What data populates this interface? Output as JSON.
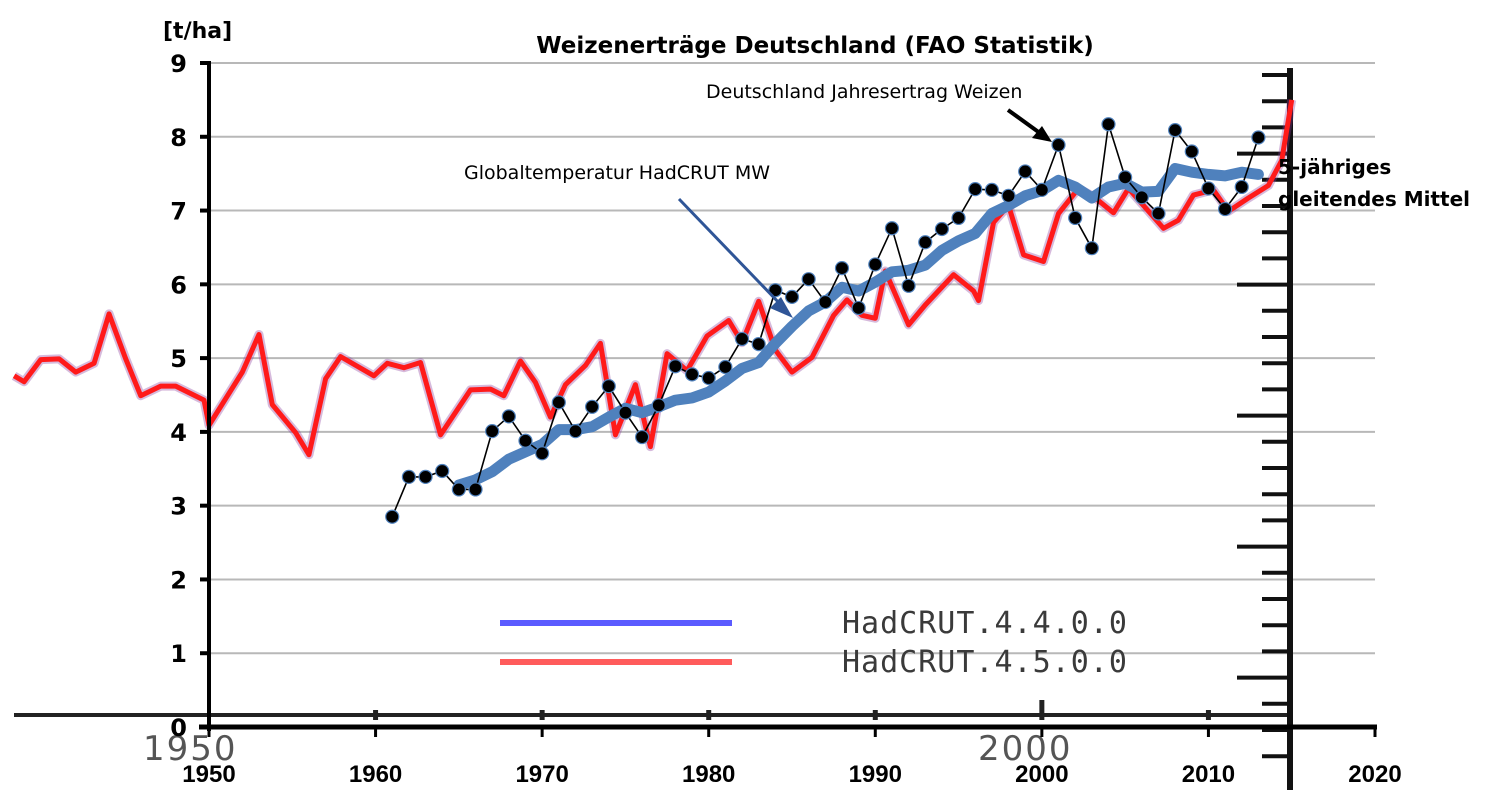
{
  "chart_data": {
    "type": "line",
    "title": "Weizenerträge Deutschland (FAO Statistik)",
    "ylabel": "[t/ha]",
    "xlabel": "",
    "xlim": [
      1950,
      2020
    ],
    "ylim": [
      0,
      9
    ],
    "x_ticks": [
      "1950",
      "1960",
      "1970",
      "1980",
      "1990",
      "2000",
      "2010",
      "2020"
    ],
    "y_ticks": [
      "0",
      "1",
      "2",
      "3",
      "4",
      "5",
      "6",
      "7",
      "8",
      "9"
    ],
    "grid": "horizontal",
    "annotations": [
      {
        "text": "Deutschland Jahresertrag Weizen",
        "points_to": "wheat_yield",
        "target_year": 2001
      },
      {
        "text": "Globaltemperatur HadCRUT MW",
        "points_to": "five_year_mean",
        "target_year": 1985
      },
      {
        "text_line1": "5-jähriges",
        "text_line2": "gleitendes Mittel",
        "points_to": "five_year_mean"
      }
    ],
    "legend": {
      "placement": "bottom-center",
      "entries": [
        {
          "label": "HadCRUT.4.4.0.0",
          "color": "#4a4aff"
        },
        {
          "label": "HadCRUT.4.5.0.0",
          "color": "#ff4a4a"
        }
      ]
    },
    "overlay_axis_labels": [
      "1950",
      "2000"
    ],
    "series": [
      {
        "name": "Deutschland Jahresertrag Weizen",
        "key": "wheat_yield",
        "color": "#000000",
        "marker": "circle",
        "x": [
          1961,
          1962,
          1963,
          1964,
          1965,
          1966,
          1967,
          1968,
          1969,
          1970,
          1971,
          1972,
          1973,
          1974,
          1975,
          1976,
          1977,
          1978,
          1979,
          1980,
          1981,
          1982,
          1983,
          1984,
          1985,
          1986,
          1987,
          1988,
          1989,
          1990,
          1991,
          1992,
          1993,
          1994,
          1995,
          1996,
          1997,
          1998,
          1999,
          2000,
          2001,
          2002,
          2003,
          2004,
          2005,
          2006,
          2007,
          2008,
          2009,
          2010,
          2011,
          2012,
          2013
        ],
        "values": [
          2.85,
          3.39,
          3.39,
          3.47,
          3.22,
          3.22,
          4.01,
          4.21,
          3.88,
          3.71,
          4.4,
          4.01,
          4.34,
          4.62,
          4.26,
          3.93,
          4.36,
          4.89,
          4.78,
          4.73,
          4.88,
          5.26,
          5.19,
          5.92,
          5.83,
          6.07,
          5.76,
          6.22,
          5.68,
          6.27,
          6.76,
          5.98,
          6.57,
          6.75,
          6.9,
          7.29,
          7.28,
          7.2,
          7.53,
          7.28,
          7.89,
          6.9,
          6.49,
          8.17,
          7.45,
          7.18,
          6.96,
          8.09,
          7.8,
          7.3,
          7.02,
          7.32,
          7.99
        ]
      },
      {
        "name": "5-jähriges gleitendes Mittel",
        "key": "five_year_mean",
        "color": "#4f81bd",
        "x": [
          1965,
          1966,
          1967,
          1968,
          1969,
          1970,
          1971,
          1972,
          1973,
          1974,
          1975,
          1976,
          1977,
          1978,
          1979,
          1980,
          1981,
          1982,
          1983,
          1984,
          1985,
          1986,
          1987,
          1988,
          1989,
          1990,
          1991,
          1992,
          1993,
          1994,
          1995,
          1996,
          1997,
          1998,
          1999,
          2000,
          2001,
          2002,
          2003,
          2004,
          2005,
          2006,
          2007,
          2008,
          2009,
          2010,
          2011,
          2012,
          2013
        ],
        "values": [
          3.28,
          3.35,
          3.46,
          3.63,
          3.73,
          3.83,
          4.03,
          4.03,
          4.07,
          4.2,
          4.32,
          4.26,
          4.34,
          4.43,
          4.46,
          4.54,
          4.69,
          4.86,
          4.94,
          5.2,
          5.43,
          5.64,
          5.76,
          5.96,
          5.91,
          6.03,
          6.17,
          6.19,
          6.26,
          6.46,
          6.59,
          6.69,
          6.96,
          7.07,
          7.2,
          7.27,
          7.41,
          7.32,
          7.17,
          7.32,
          7.37,
          7.25,
          7.26,
          7.57,
          7.52,
          7.49,
          7.47,
          7.52,
          7.49
        ]
      },
      {
        "name": "Globaltemperatur HadCRUT (overlay)",
        "key": "hadcrut_overlay",
        "color": "#ff1a1a",
        "x": [
          1938.3,
          1938.9,
          1939.9,
          1941.0,
          1942.0,
          1943.1,
          1944.0,
          1945.0,
          1945.9,
          1947.1,
          1948.0,
          1949.7,
          1950.0,
          1952.0,
          1953.0,
          1953.8,
          1955.2,
          1956.0,
          1957.0,
          1957.9,
          1959.9,
          1960.7,
          1961.7,
          1962.7,
          1963.9,
          1965.7,
          1966.9,
          1967.7,
          1968.7,
          1969.6,
          1970.5,
          1971.4,
          1972.6,
          1973.5,
          1974.4,
          1975.6,
          1976.5,
          1977.5,
          1978.7,
          1979.9,
          1981.2,
          1982.0,
          1983.0,
          1984.0,
          1985.0,
          1986.2,
          1987.5,
          1988.3,
          1989.2,
          1990.0,
          1990.6,
          1992.0,
          1993.0,
          1994.7,
          1995.9,
          1996.2,
          1997.1,
          1998.0,
          1998.9,
          2000.1,
          2001.0,
          2002.2,
          2003.1,
          2004.3,
          2005.2,
          2007.3,
          2008.2,
          2009.1,
          2010.3,
          2011.2,
          2012.4,
          2013.6,
          2014.4,
          2015.0
        ],
        "values": [
          4.76,
          4.68,
          4.98,
          4.99,
          4.81,
          4.93,
          5.6,
          4.99,
          4.49,
          4.62,
          4.62,
          4.43,
          4.09,
          4.81,
          5.32,
          4.37,
          3.99,
          3.69,
          4.72,
          5.02,
          4.76,
          4.93,
          4.87,
          4.94,
          3.96,
          4.57,
          4.58,
          4.49,
          4.96,
          4.67,
          4.2,
          4.64,
          4.9,
          5.2,
          3.96,
          4.64,
          3.8,
          5.06,
          4.83,
          5.3,
          5.51,
          5.21,
          5.77,
          5.11,
          4.81,
          5.01,
          5.58,
          5.79,
          5.58,
          5.54,
          6.18,
          5.45,
          5.72,
          6.13,
          5.91,
          5.78,
          6.84,
          7.07,
          6.4,
          6.31,
          6.96,
          7.3,
          7.19,
          6.97,
          7.3,
          6.76,
          6.87,
          7.21,
          7.28,
          6.99,
          7.17,
          7.34,
          7.68,
          8.5
        ]
      }
    ]
  }
}
